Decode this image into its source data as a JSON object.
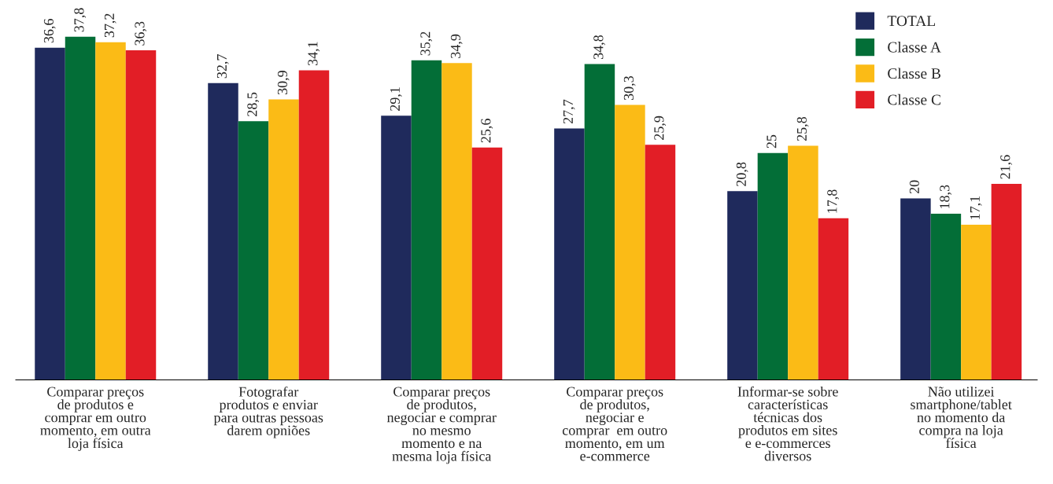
{
  "chart_data": {
    "type": "bar",
    "categories": [
      "Comparar preços\nde produtos e\ncomprar em outro\nmomento, em outra\nloja física",
      "Fotografar\nprodutos e enviar\npara outras pessoas\ndarem opniões",
      "Comparar preços\nde produtos,\nnegociar e comprar\nno mesmo\nmomento e na\nmesma loja física",
      "Comparar preços\nde produtos,\nnegociar e\ncomprar  em outro\nmomento, em um\ne-commerce",
      "Informar-se sobre\ncaracterísticas\ntécnicas dos\nprodutos em sites\ne e-commerces\ndiversos",
      "Não utilizei\nsmartphone/tablet\nno momento da\ncompra na loja\nfísica"
    ],
    "series": [
      {
        "name": "TOTAL",
        "color": "#1f2a5c",
        "values": [
          36.6,
          32.7,
          29.1,
          27.7,
          20.8,
          20
        ],
        "value_labels": [
          "36,6",
          "32,7",
          "29,1",
          "27,7",
          "20,8",
          "20"
        ]
      },
      {
        "name": "Classe A",
        "color": "#036e37",
        "values": [
          37.8,
          28.5,
          35.2,
          34.8,
          25,
          18.3
        ],
        "value_labels": [
          "37,8",
          "28,5",
          "35,2",
          "34,8",
          "25",
          "18,3"
        ]
      },
      {
        "name": "Classe B",
        "color": "#fbbb16",
        "values": [
          37.2,
          30.9,
          34.9,
          30.3,
          25.8,
          17.1
        ],
        "value_labels": [
          "37,2",
          "30,9",
          "34,9",
          "30,3",
          "25,8",
          "17,1"
        ]
      },
      {
        "name": "Classe C",
        "color": "#e21e26",
        "values": [
          36.3,
          34.1,
          25.6,
          25.9,
          17.8,
          21.6
        ],
        "value_labels": [
          "36,3",
          "34,1",
          "25,6",
          "25,9",
          "17,8",
          "21,6"
        ]
      }
    ],
    "legend": "top right",
    "grid": false
  }
}
